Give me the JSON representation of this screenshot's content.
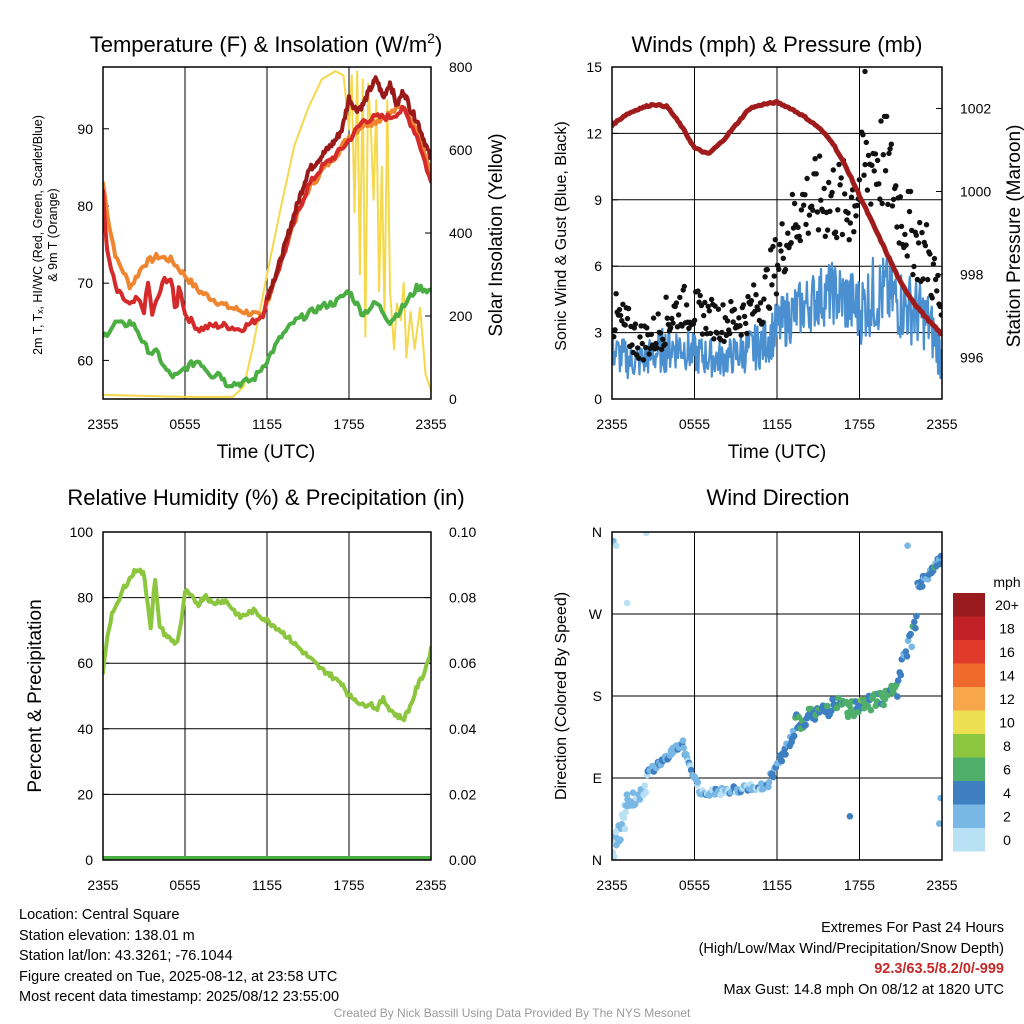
{
  "chart_data": [
    {
      "id": "temp",
      "type": "line",
      "title": "Temperature (F) & Insolation (W/m",
      "title_superscript": "2",
      "title_suffix": ")",
      "xlabel": "Time (UTC)",
      "ylabel_left_lines": [
        "2m T, Tₓ, HI/WC (Red, Green, Scarlet/Blue)",
        "& 9m T (Orange)"
      ],
      "ylabel_right": "Solar Insolation (Yellow)",
      "x_ticks": [
        "2355",
        "0555",
        "1155",
        "1755",
        "2355"
      ],
      "x_hours": [
        0,
        24
      ],
      "ylim_left": [
        55,
        98
      ],
      "yticks_left": [
        "60",
        "70",
        "80",
        "90"
      ],
      "ylim_right": [
        0,
        800
      ],
      "yticks_right": [
        "0",
        "200",
        "400",
        "600",
        "800"
      ],
      "series": [
        {
          "axis": "right",
          "color": "#f5d84b",
          "width": 2,
          "x": [
            0,
            6,
            9.5,
            10.3,
            11,
            12,
            13,
            14,
            15,
            16,
            17,
            17.6,
            18,
            18.2,
            18.4,
            18.6,
            18.8,
            19,
            19.2,
            19.4,
            19.6,
            19.8,
            20,
            20.2,
            20.4,
            20.6,
            20.8,
            21,
            21.3,
            21.5,
            21.8,
            22,
            22.2,
            22.5,
            22.8,
            23.2,
            23.6,
            24
          ],
          "y": [
            10,
            5,
            5,
            30,
            130,
            300,
            460,
            610,
            700,
            770,
            790,
            780,
            650,
            780,
            450,
            790,
            300,
            770,
            150,
            760,
            650,
            480,
            720,
            260,
            560,
            200,
            720,
            260,
            120,
            230,
            190,
            280,
            100,
            210,
            120,
            220,
            60,
            20
          ]
        },
        {
          "axis": "left",
          "color": "#f08530",
          "width": 4,
          "x": [
            0,
            0.5,
            1,
            1.5,
            2,
            3,
            4,
            5,
            6,
            7,
            8,
            9,
            10,
            11,
            11.7,
            12,
            13,
            14,
            15,
            16,
            17,
            18,
            19,
            20,
            21,
            22,
            23,
            24
          ],
          "y": [
            83,
            77,
            73,
            71.5,
            69.5,
            72.5,
            73.5,
            73,
            71,
            69,
            68,
            67,
            66.5,
            66,
            65.5,
            67.5,
            73,
            78,
            82,
            84.5,
            86.5,
            89,
            90.5,
            91,
            92,
            93,
            90,
            84
          ]
        },
        {
          "axis": "left",
          "color": "#d42a2a",
          "width": 4,
          "x": [
            0,
            0.3,
            0.7,
            1,
            1.5,
            2,
            2.5,
            3,
            3.3,
            3.6,
            4,
            4.5,
            5,
            5.3,
            5.6,
            6,
            7,
            8,
            9,
            10,
            11,
            11.7,
            12,
            13,
            14,
            15,
            16,
            17,
            18,
            19,
            20,
            21,
            22,
            23,
            24
          ],
          "y": [
            82,
            74,
            71,
            69,
            68,
            67,
            68,
            66.5,
            70,
            66,
            68,
            70.5,
            70.5,
            66,
            70,
            66,
            64,
            64.5,
            64.5,
            64,
            65,
            66,
            68,
            72.5,
            78,
            82.5,
            85,
            86.5,
            88.5,
            91,
            91.5,
            91.5,
            92.5,
            89,
            83
          ]
        },
        {
          "axis": "left",
          "color": "#9a1a1a",
          "width": 4,
          "x": [
            12,
            13,
            14,
            15,
            16,
            17,
            17.5,
            18,
            18.5,
            19,
            19.5,
            20,
            20.5,
            21,
            21.5,
            22,
            22.5,
            23,
            24
          ],
          "y": [
            68,
            73,
            79,
            84.5,
            86.5,
            88.5,
            90,
            94,
            92.5,
            93,
            95,
            96.5,
            94,
            96,
            93,
            95,
            92.5,
            91,
            86
          ]
        },
        {
          "axis": "left",
          "color": "#4aae42",
          "width": 4,
          "x": [
            0,
            0.5,
            1,
            1.5,
            2,
            2.5,
            3,
            3.5,
            4,
            4.5,
            5,
            5.5,
            6,
            6.5,
            7,
            7.5,
            8,
            8.5,
            9,
            10,
            11,
            12,
            13,
            14,
            15,
            16,
            17,
            18,
            19,
            20,
            21,
            22,
            23,
            24
          ],
          "y": [
            63,
            64,
            65,
            64.5,
            65,
            64,
            62,
            61,
            61,
            59,
            58,
            58,
            59,
            59.5,
            60,
            59,
            58,
            58.5,
            57,
            57,
            57.5,
            60,
            63,
            65,
            66,
            67,
            67.5,
            69,
            66,
            67.5,
            65,
            67,
            69.5,
            69
          ]
        }
      ]
    },
    {
      "id": "winds",
      "type": "line",
      "title": "Winds (mph) & Pressure (mb)",
      "xlabel": "Time (UTC)",
      "ylabel_left": "Sonic Wind & Gust (Blue, Black)",
      "ylabel_right": "Station Pressure (Maroon)",
      "x_ticks": [
        "2355",
        "0555",
        "1155",
        "1755",
        "2355"
      ],
      "x_hours": [
        0,
        24
      ],
      "ylim_left": [
        0,
        15
      ],
      "yticks_left": [
        "0",
        "3",
        "6",
        "9",
        "12",
        "15"
      ],
      "ylim_right": [
        995.0,
        1003.0
      ],
      "yticks_right": [
        "996",
        "998",
        "1000",
        "1002"
      ],
      "wind_speed": {
        "color": "#4a90d0",
        "x": [
          0,
          1,
          2,
          3,
          4,
          5,
          6,
          7,
          8,
          9,
          10,
          11,
          12,
          13,
          14,
          15,
          16,
          17,
          18,
          19,
          20,
          21,
          22,
          23,
          24
        ],
        "y": [
          2.2,
          1.8,
          1.7,
          2.0,
          2.3,
          2.4,
          2.0,
          1.9,
          1.8,
          2.0,
          2.2,
          2.5,
          3.2,
          3.8,
          4.2,
          4.6,
          4.8,
          4.5,
          4.0,
          4.7,
          4.8,
          4.3,
          4.0,
          3.5,
          1.8
        ],
        "amplitude": [
          0.9,
          0.9,
          0.8,
          0.9,
          1.1,
          1.0,
          0.9,
          0.9,
          0.8,
          0.9,
          1.0,
          1.1,
          1.2,
          1.3,
          1.3,
          1.4,
          1.4,
          1.6,
          1.6,
          1.8,
          1.8,
          1.7,
          1.6,
          1.4,
          1.1
        ]
      },
      "wind_gust": {
        "color": "#111111",
        "x": [
          0,
          1,
          2,
          3,
          4,
          5,
          6,
          7,
          8,
          9,
          10,
          11,
          12,
          13,
          14,
          15,
          16,
          17,
          18,
          19,
          20,
          21,
          22,
          23,
          24
        ],
        "y": [
          3.8,
          3.2,
          2.6,
          2.8,
          3.6,
          4.2,
          4.0,
          3.7,
          3.5,
          3.6,
          4.0,
          4.6,
          6.2,
          7.8,
          8.8,
          9.0,
          9.1,
          8.6,
          9.6,
          11.0,
          10.5,
          8.5,
          7.2,
          6.4,
          4.0
        ],
        "amplitude": [
          1.2,
          1.1,
          0.9,
          1.0,
          1.1,
          1.0,
          1.0,
          0.9,
          0.9,
          1.0,
          1.0,
          1.2,
          1.4,
          1.6,
          1.8,
          2.0,
          2.1,
          2.2,
          2.2,
          2.6,
          2.3,
          2.0,
          1.8,
          1.6,
          1.4
        ],
        "max": {
          "x": 18.4,
          "y": 14.8
        }
      },
      "pressure": {
        "color": "#a01c1c",
        "x": [
          0,
          1,
          2,
          3,
          4,
          5,
          6,
          7,
          8,
          9,
          10,
          11,
          12,
          13,
          14,
          15,
          16,
          17,
          18,
          19,
          20,
          21,
          22,
          23,
          24
        ],
        "y": [
          1001.6,
          1001.85,
          1002.0,
          1002.1,
          1002.05,
          1001.6,
          1001.05,
          1000.9,
          1001.2,
          1001.6,
          1002.0,
          1002.1,
          1002.15,
          1002.0,
          1001.8,
          1001.55,
          1001.2,
          1000.6,
          999.9,
          999.2,
          998.5,
          997.8,
          997.3,
          996.9,
          996.55
        ]
      }
    },
    {
      "id": "rh",
      "type": "line",
      "title": "Relative Humidity (%) & Precipitation (in)",
      "ylabel_left": "Percent & Precipitation",
      "x_ticks": [
        "2355",
        "0555",
        "1155",
        "1755",
        "2355"
      ],
      "x_hours": [
        0,
        24
      ],
      "ylim_left": [
        0,
        100
      ],
      "yticks_left": [
        "0",
        "20",
        "40",
        "60",
        "80",
        "100"
      ],
      "ylim_right": [
        0,
        0.1
      ],
      "yticks_right": [
        "0.00",
        "0.02",
        "0.04",
        "0.06",
        "0.08",
        "0.10"
      ],
      "series": [
        {
          "name": "RH",
          "axis": "left",
          "color": "#8cc63f",
          "width": 4,
          "x": [
            0,
            0.3,
            0.7,
            1,
            1.5,
            2,
            2.5,
            3,
            3.5,
            3.8,
            4.1,
            4.5,
            5,
            5.4,
            5.8,
            6,
            6.5,
            7,
            7.5,
            8,
            8.5,
            9,
            10,
            11,
            12,
            13,
            14,
            15,
            16,
            16.5,
            17,
            17.5,
            18,
            18.5,
            19,
            19.5,
            20,
            20.5,
            21,
            21.5,
            22,
            22.5,
            23,
            23.5,
            24
          ],
          "y": [
            57,
            68,
            76,
            77,
            83,
            86,
            89,
            87,
            71,
            86,
            72,
            69,
            67,
            66,
            74,
            82,
            80,
            78,
            81,
            78,
            79,
            79,
            74,
            76,
            73,
            70,
            66,
            62,
            58,
            57,
            55,
            54,
            50,
            49,
            47,
            48,
            46,
            49,
            46,
            44,
            43,
            47,
            53,
            57,
            64
          ]
        },
        {
          "name": "Precip",
          "axis": "right",
          "color": "#4aae42",
          "width": 8,
          "x": [
            0,
            24
          ],
          "y": [
            0,
            0
          ]
        }
      ]
    },
    {
      "id": "wdir",
      "type": "scatter",
      "title": "Wind Direction",
      "ylabel_left": "Direction (Colored By Speed)",
      "x_ticks": [
        "2355",
        "0555",
        "1155",
        "1755",
        "2355"
      ],
      "x_hours": [
        0,
        24
      ],
      "ylim_left": [
        0,
        360
      ],
      "yticks_left": [
        "N",
        "E",
        "S",
        "W",
        "N"
      ],
      "legend_title": "mph",
      "legend_labels": [
        "20+",
        "18",
        "16",
        "14",
        "12",
        "10",
        "8",
        "6",
        "4",
        "2",
        "0"
      ],
      "legend_colors": [
        "#9a1b1e",
        "#c12026",
        "#e03a2b",
        "#f06a2e",
        "#f8a64a",
        "#ece052",
        "#8cc63f",
        "#4fae6a",
        "#3d7fc1",
        "#79b7e4",
        "#b9e1f6"
      ],
      "segments": [
        {
          "x0": 0,
          "x1": 1.2,
          "d0": 10,
          "d1": 60,
          "spread": 35,
          "speed": 1.2,
          "n": 26
        },
        {
          "x0": 1.2,
          "x1": 2.6,
          "d0": 60,
          "d1": 85,
          "spread": 18,
          "speed": 1.4,
          "n": 18
        },
        {
          "x0": 2.6,
          "x1": 5.2,
          "d0": 95,
          "d1": 130,
          "spread": 8,
          "speed": 2.5,
          "n": 36
        },
        {
          "x0": 5.2,
          "x1": 6.3,
          "d0": 120,
          "d1": 80,
          "spread": 8,
          "speed": 2.2,
          "n": 18
        },
        {
          "x0": 6.3,
          "x1": 11.5,
          "d0": 72,
          "d1": 82,
          "spread": 8,
          "speed": 1.9,
          "n": 60
        },
        {
          "x0": 11.5,
          "x1": 13.3,
          "d0": 90,
          "d1": 140,
          "spread": 12,
          "speed": 3.2,
          "n": 26
        },
        {
          "x0": 13.3,
          "x1": 17,
          "d0": 150,
          "d1": 175,
          "spread": 18,
          "speed": 4.8,
          "n": 44
        },
        {
          "x0": 17,
          "x1": 20.8,
          "d0": 165,
          "d1": 185,
          "spread": 22,
          "speed": 5.6,
          "n": 46
        },
        {
          "x0": 20.8,
          "x1": 22.2,
          "d0": 200,
          "d1": 260,
          "spread": 22,
          "speed": 3.8,
          "n": 16
        },
        {
          "x0": 22.2,
          "x1": 24,
          "d0": 300,
          "d1": 330,
          "spread": 12,
          "speed": 3.6,
          "n": 22
        }
      ],
      "outliers": [
        {
          "x": 0.1,
          "dir": 350,
          "speed": 1.0
        },
        {
          "x": 0.3,
          "dir": 345,
          "speed": 0.5
        },
        {
          "x": 1.1,
          "dir": 282,
          "speed": 0.6
        },
        {
          "x": 2.5,
          "dir": 362,
          "speed": 0.5
        },
        {
          "x": 17.3,
          "dir": 48,
          "speed": 3.5
        },
        {
          "x": 21.5,
          "dir": 345,
          "speed": 2.5
        },
        {
          "x": 23.8,
          "dir": 40,
          "speed": 2.0
        },
        {
          "x": 23.9,
          "dir": 68,
          "speed": 1.8
        }
      ]
    }
  ],
  "info": {
    "location": "Location: Central Square",
    "elevation": "Station elevation: 138.01 m",
    "latlon": "Station lat/lon: 43.3261; -76.1044",
    "created": "Figure created on Tue, 2025-08-12, at 23:58 UTC",
    "recent": "Most recent data timestamp: 2025/08/12 23:55:00"
  },
  "extremes": {
    "heading": "Extremes For Past 24 Hours",
    "subheading": "(High/Low/Max Wind/Precipitation/Snow Depth)",
    "values": "92.3/63.5/8.2/0/-999",
    "gust": "Max Gust: 14.8 mph On 08/12 at 1820 UTC"
  },
  "credit": "Created By Nick Bassill Using Data Provided By The NYS Mesonet"
}
